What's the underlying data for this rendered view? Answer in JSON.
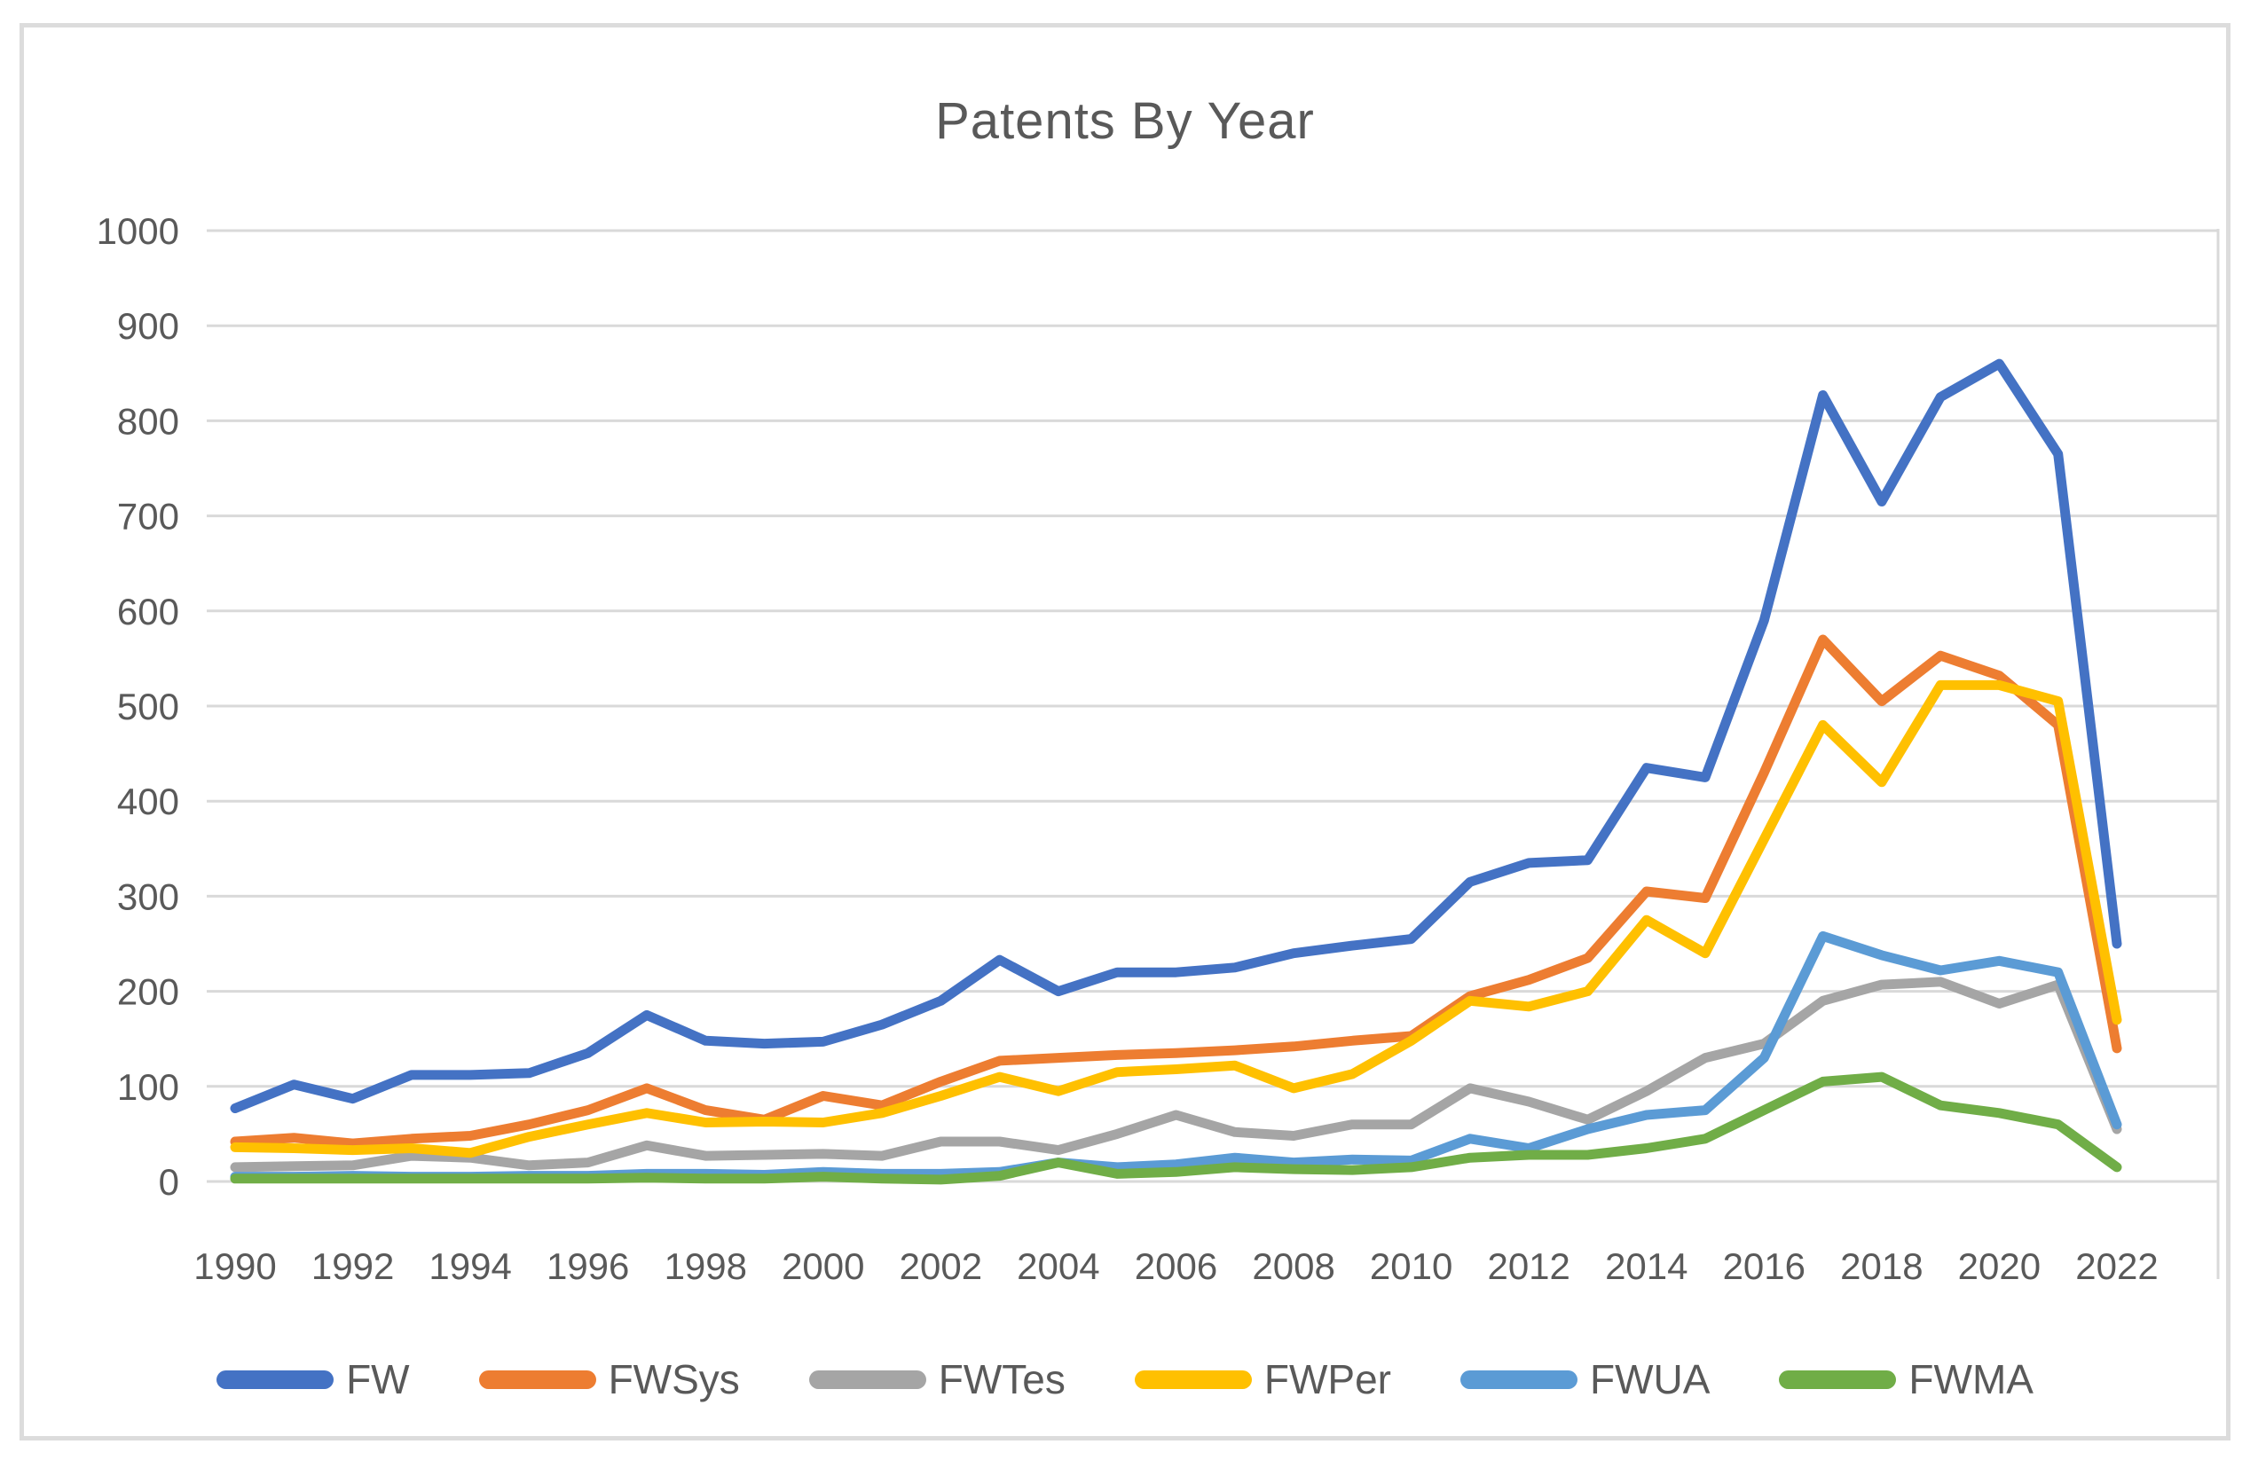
{
  "chart_data": {
    "type": "line",
    "title": "Patents By Year",
    "categories": [
      1990,
      1991,
      1992,
      1993,
      1994,
      1995,
      1996,
      1997,
      1998,
      1999,
      2000,
      2001,
      2002,
      2003,
      2004,
      2005,
      2006,
      2007,
      2008,
      2009,
      2010,
      2011,
      2012,
      2013,
      2014,
      2015,
      2016,
      2017,
      2018,
      2019,
      2020,
      2021,
      2022
    ],
    "x_tick_labels": [
      "1990",
      "1992",
      "1994",
      "1996",
      "1998",
      "2000",
      "2002",
      "2004",
      "2006",
      "2008",
      "2010",
      "2012",
      "2014",
      "2016",
      "2018",
      "2020",
      "2022"
    ],
    "y_ticks": [
      0,
      100,
      200,
      300,
      400,
      500,
      600,
      700,
      800,
      900,
      1000
    ],
    "ylim": [
      0,
      1000
    ],
    "grid": true,
    "legend_position": "bottom",
    "series": [
      {
        "name": "FW",
        "color": "#4472C4",
        "values": [
          77,
          102,
          87,
          112,
          112,
          114,
          135,
          175,
          148,
          145,
          147,
          165,
          190,
          233,
          200,
          220,
          220,
          225,
          240,
          248,
          255,
          315,
          335,
          338,
          435,
          425,
          590,
          827,
          715,
          825,
          860,
          765,
          250
        ]
      },
      {
        "name": "FWSys",
        "color": "#ED7D31",
        "values": [
          42,
          46,
          40,
          45,
          48,
          60,
          75,
          98,
          75,
          65,
          90,
          80,
          105,
          127,
          130,
          133,
          135,
          138,
          142,
          148,
          153,
          195,
          212,
          235,
          305,
          298,
          430,
          570,
          505,
          553,
          532,
          480,
          140
        ]
      },
      {
        "name": "FWTes",
        "color": "#A5A5A5",
        "values": [
          15,
          16,
          17,
          27,
          25,
          17,
          20,
          38,
          27,
          28,
          29,
          27,
          42,
          42,
          33,
          50,
          70,
          52,
          48,
          60,
          60,
          98,
          84,
          65,
          95,
          130,
          145,
          190,
          207,
          210,
          187,
          207,
          55
        ]
      },
      {
        "name": "FWPer",
        "color": "#FFC000",
        "values": [
          36,
          35,
          33,
          35,
          30,
          47,
          60,
          72,
          62,
          63,
          62,
          72,
          90,
          110,
          95,
          115,
          118,
          122,
          98,
          113,
          148,
          190,
          184,
          200,
          275,
          240,
          360,
          480,
          420,
          522,
          522,
          505,
          170
        ]
      },
      {
        "name": "FWUA",
        "color": "#5B9BD5",
        "values": [
          5,
          5,
          6,
          5,
          5,
          6,
          6,
          8,
          8,
          7,
          10,
          8,
          8,
          10,
          20,
          15,
          18,
          25,
          20,
          23,
          22,
          45,
          35,
          55,
          70,
          75,
          130,
          258,
          238,
          222,
          232,
          220,
          60
        ]
      },
      {
        "name": "FWMA",
        "color": "#70AD47",
        "values": [
          3,
          3,
          3,
          3,
          3,
          3,
          3,
          4,
          3,
          3,
          5,
          3,
          2,
          6,
          20,
          8,
          10,
          15,
          13,
          12,
          15,
          25,
          28,
          28,
          35,
          45,
          75,
          105,
          110,
          80,
          72,
          60,
          15
        ]
      }
    ],
    "style": {
      "gridline_color": "#D9D9D9",
      "text_color": "#595959",
      "background": "#FFFFFF"
    }
  }
}
